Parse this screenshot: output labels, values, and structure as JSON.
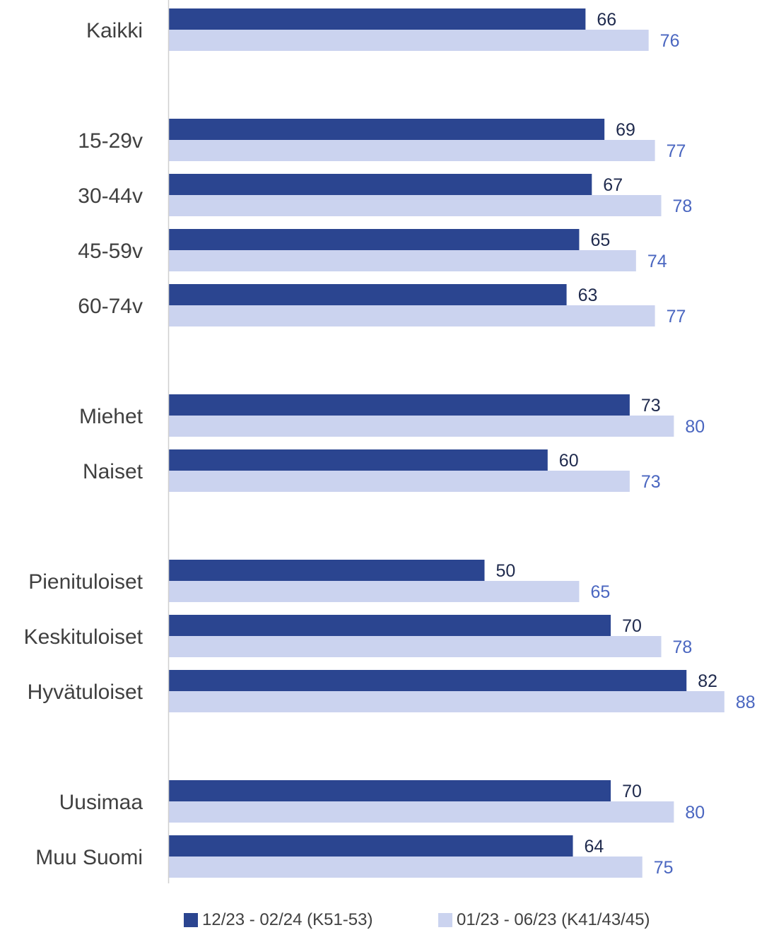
{
  "chart_data": {
    "type": "bar",
    "orientation": "horizontal",
    "categories": [
      "Kaikki",
      "15-29v",
      "30-44v",
      "45-59v",
      "60-74v",
      "Miehet",
      "Naiset",
      "Pienituloiset",
      "Keskituloiset",
      "Hyvätuloiset",
      "Uusimaa",
      "Muu Suomi"
    ],
    "groups": [
      [
        "Kaikki"
      ],
      [
        "15-29v",
        "30-44v",
        "45-59v",
        "60-74v"
      ],
      [
        "Miehet",
        "Naiset"
      ],
      [
        "Pienituloiset",
        "Keskituloiset",
        "Hyvätuloiset"
      ],
      [
        "Uusimaa",
        "Muu Suomi"
      ]
    ],
    "series": [
      {
        "name": "12/23 - 02/24 (K51-53)",
        "color": "#2b4590",
        "label_color": "#1f2a4d",
        "values": [
          66,
          69,
          67,
          65,
          63,
          73,
          60,
          50,
          70,
          82,
          70,
          64
        ]
      },
      {
        "name": "01/23 - 06/23 (K41/43/45)",
        "color": "#cbd3ef",
        "label_color": "#4a66c0",
        "values": [
          76,
          77,
          78,
          74,
          77,
          80,
          73,
          65,
          78,
          88,
          80,
          75
        ]
      }
    ],
    "xlim": [
      0,
      100
    ],
    "grid": false,
    "legend_position": "bottom",
    "title": "",
    "xlabel": "",
    "ylabel": ""
  }
}
